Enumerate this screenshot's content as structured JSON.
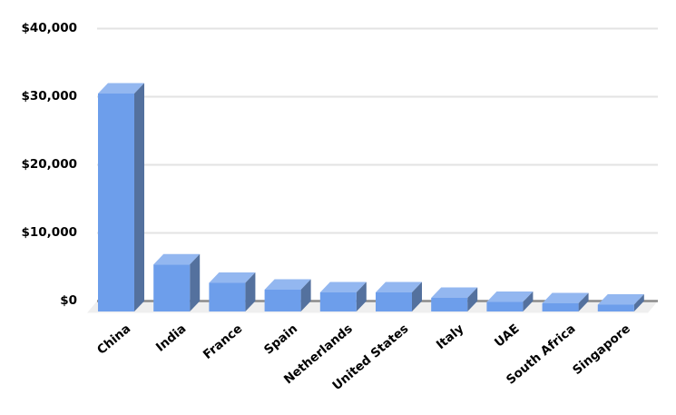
{
  "chart_data": {
    "type": "bar",
    "variant": "3d-column",
    "title": "",
    "xlabel": "",
    "ylabel": "",
    "categories": [
      "China",
      "India",
      "France",
      "Spain",
      "Netherlands",
      "United States",
      "Italy",
      "UAE",
      "South Africa",
      "Singapore"
    ],
    "values": [
      32000,
      6900,
      4200,
      3200,
      2800,
      2800,
      2000,
      1400,
      1200,
      1000
    ],
    "ylim": [
      0,
      40000
    ],
    "ytick_step": 10000,
    "y_tick_labels": [
      "$0",
      "$10,000",
      "$20,000",
      "$30,000",
      "$40,000"
    ],
    "grid": true,
    "legend_position": "none",
    "x_label_rotation_deg": -40
  },
  "colors": {
    "background": "#ffffff",
    "bar_front": "#6d9eeb",
    "bar_top": "#93b7f0",
    "bar_side": "#54719e",
    "floor": "#efefef",
    "axis_line": "#8c8c8c",
    "gridline": "#e3e3e3",
    "label_text": "#000000"
  }
}
